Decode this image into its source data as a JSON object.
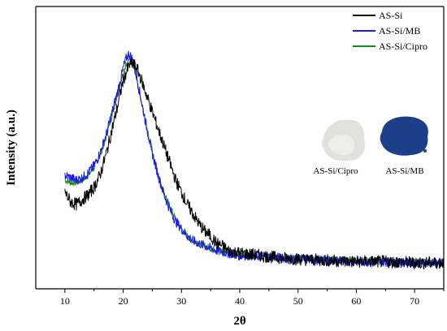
{
  "chart_data": {
    "type": "line",
    "xlabel": "2θ",
    "ylabel": "Intensity (a.u.)",
    "xlim": [
      5,
      75
    ],
    "ylim": [
      0,
      100
    ],
    "x_ticks": [
      "10",
      "20",
      "30",
      "40",
      "50",
      "60",
      "70"
    ],
    "x_tick_values": [
      10,
      20,
      30,
      40,
      50,
      60,
      70
    ],
    "grid": false,
    "legend_position": "top-right",
    "series": [
      {
        "name": "AS-Si",
        "color": "#000000",
        "x": [
          10,
          11,
          12,
          13,
          14,
          15,
          16,
          17,
          18,
          19,
          20,
          20.5,
          21,
          21.5,
          22,
          22.5,
          23,
          24,
          25,
          26,
          27,
          28,
          29,
          30,
          31,
          32,
          33,
          34,
          35,
          36,
          37,
          38,
          40,
          42,
          45,
          50,
          55,
          60,
          65,
          70,
          75
        ],
        "y": [
          31,
          27,
          26,
          28,
          30,
          33,
          38,
          46,
          56,
          66,
          77,
          80,
          83,
          84,
          83,
          81,
          78,
          71,
          64,
          57,
          50,
          43,
          36,
          31,
          26,
          22,
          18,
          15,
          13,
          10,
          9,
          7,
          6,
          5.5,
          4.5,
          3.5,
          3,
          2.5,
          2.5,
          2,
          2
        ]
      },
      {
        "name": "AS-Si/MB",
        "color": "#1a1aee",
        "x": [
          10,
          11,
          12,
          13,
          14,
          15,
          16,
          17,
          18,
          19,
          20,
          20.5,
          21,
          21.5,
          22,
          22.5,
          23,
          24,
          25,
          26,
          27,
          28,
          29,
          30,
          31,
          32,
          33,
          34,
          35,
          36,
          37,
          38,
          40,
          42,
          45,
          50,
          55,
          60,
          65,
          70,
          75
        ],
        "y": [
          38,
          37,
          36,
          37,
          39,
          42,
          47,
          54,
          63,
          72,
          82,
          86,
          88,
          86,
          82,
          76,
          70,
          58,
          47,
          38,
          30,
          24,
          19,
          16,
          13,
          11,
          10,
          9,
          8,
          7,
          6.5,
          6,
          5,
          5,
          4.5,
          3.5,
          3,
          2.5,
          2.5,
          2,
          2
        ]
      },
      {
        "name": "AS-Si/Cipro",
        "color": "#1a8a1a",
        "x": [
          10,
          11,
          12,
          13,
          14,
          15,
          16,
          17,
          18,
          19,
          20,
          20.5,
          21,
          21.5,
          22,
          22.5,
          23,
          24,
          25,
          26,
          27,
          28,
          29,
          30,
          31,
          32,
          33,
          34,
          35,
          36,
          37,
          38,
          40,
          42,
          45,
          50,
          55,
          60,
          65,
          70,
          75
        ],
        "y": [
          36,
          35,
          35,
          36,
          38,
          41,
          46,
          53,
          62,
          71,
          80,
          84,
          86,
          84,
          80,
          75,
          69,
          58,
          47,
          38,
          31,
          25,
          20,
          16,
          13,
          11,
          10,
          9,
          8,
          7.5,
          7,
          6.5,
          5.5,
          5,
          4.5,
          4,
          3.5,
          3,
          2.5,
          2.5,
          2
        ]
      }
    ]
  },
  "inset": {
    "cipro_label": "AS-Si/Cipro",
    "mb_label": "AS-Si/MB",
    "cipro_color": "#e2e2dc",
    "mb_color": "#1d3f8a"
  }
}
